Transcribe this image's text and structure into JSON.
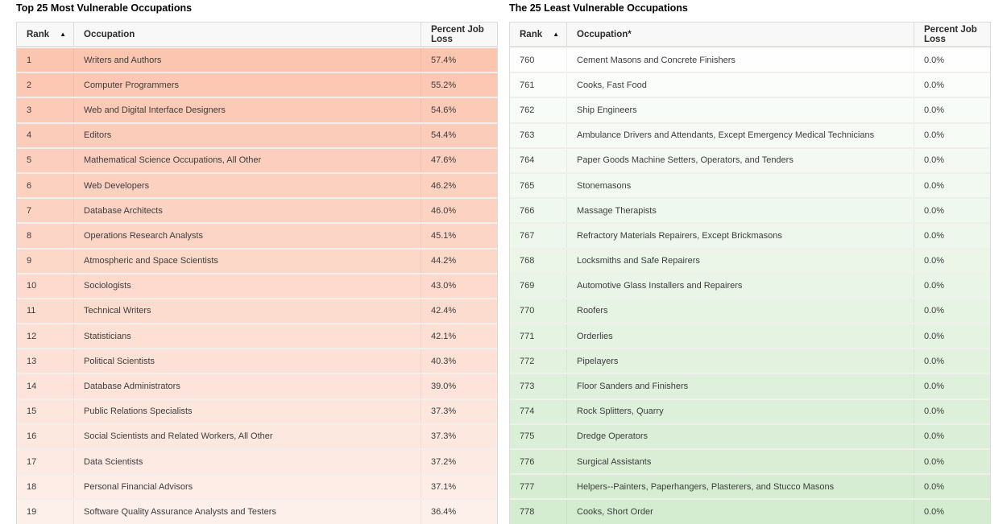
{
  "page": {
    "background": "#ffffff"
  },
  "sort_icon_glyph": "▲",
  "tables": [
    {
      "title": "Top 25 Most Vulnerable Occupations",
      "columns": {
        "rank": "Rank",
        "occupation": "Occupation",
        "percent": "Percent Job Loss"
      },
      "sort_state": "ascending-by-rank",
      "row_color_start": "#fcc5b0",
      "row_color_end": "#fdefe9",
      "rows": [
        {
          "rank": "1",
          "occupation": "Writers and Authors",
          "percent": "57.4%"
        },
        {
          "rank": "2",
          "occupation": "Computer Programmers",
          "percent": "55.2%"
        },
        {
          "rank": "3",
          "occupation": "Web and Digital Interface Designers",
          "percent": "54.6%"
        },
        {
          "rank": "4",
          "occupation": "Editors",
          "percent": "54.4%"
        },
        {
          "rank": "5",
          "occupation": "Mathematical Science Occupations, All Other",
          "percent": "47.6%"
        },
        {
          "rank": "6",
          "occupation": "Web Developers",
          "percent": "46.2%"
        },
        {
          "rank": "7",
          "occupation": "Database Architects",
          "percent": "46.0%"
        },
        {
          "rank": "8",
          "occupation": "Operations Research Analysts",
          "percent": "45.1%"
        },
        {
          "rank": "9",
          "occupation": "Atmospheric and Space Scientists",
          "percent": "44.2%"
        },
        {
          "rank": "10",
          "occupation": "Sociologists",
          "percent": "43.0%"
        },
        {
          "rank": "11",
          "occupation": "Technical Writers",
          "percent": "42.4%"
        },
        {
          "rank": "12",
          "occupation": "Statisticians",
          "percent": "42.1%"
        },
        {
          "rank": "13",
          "occupation": "Political Scientists",
          "percent": "40.3%"
        },
        {
          "rank": "14",
          "occupation": "Database Administrators",
          "percent": "39.0%"
        },
        {
          "rank": "15",
          "occupation": "Public Relations Specialists",
          "percent": "37.3%"
        },
        {
          "rank": "16",
          "occupation": "Social Scientists and Related Workers, All Other",
          "percent": "37.3%"
        },
        {
          "rank": "17",
          "occupation": "Data Scientists",
          "percent": "37.2%"
        },
        {
          "rank": "18",
          "occupation": "Personal Financial Advisors",
          "percent": "37.1%"
        },
        {
          "rank": "19",
          "occupation": "Software Quality Assurance Analysts and Testers",
          "percent": "36.4%"
        }
      ]
    },
    {
      "title": "The 25 Least Vulnerable Occupations",
      "columns": {
        "rank": "Rank",
        "occupation": "Occupation*",
        "percent": "Percent Job Loss"
      },
      "sort_state": "ascending-by-rank",
      "row_color_start": "#fdfefd",
      "row_color_end": "#d4ecd0",
      "rows": [
        {
          "rank": "760",
          "occupation": "Cement Masons and Concrete Finishers",
          "percent": "0.0%"
        },
        {
          "rank": "761",
          "occupation": "Cooks, Fast Food",
          "percent": "0.0%"
        },
        {
          "rank": "762",
          "occupation": "Ship Engineers",
          "percent": "0.0%"
        },
        {
          "rank": "763",
          "occupation": "Ambulance Drivers and Attendants, Except Emergency Medical Technicians",
          "percent": "0.0%"
        },
        {
          "rank": "764",
          "occupation": "Paper Goods Machine Setters, Operators, and Tenders",
          "percent": "0.0%"
        },
        {
          "rank": "765",
          "occupation": "Stonemasons",
          "percent": "0.0%"
        },
        {
          "rank": "766",
          "occupation": "Massage Therapists",
          "percent": "0.0%"
        },
        {
          "rank": "767",
          "occupation": "Refractory Materials Repairers, Except Brickmasons",
          "percent": "0.0%"
        },
        {
          "rank": "768",
          "occupation": "Locksmiths and Safe Repairers",
          "percent": "0.0%"
        },
        {
          "rank": "769",
          "occupation": "Automotive Glass Installers and Repairers",
          "percent": "0.0%"
        },
        {
          "rank": "770",
          "occupation": "Roofers",
          "percent": "0.0%"
        },
        {
          "rank": "771",
          "occupation": "Orderlies",
          "percent": "0.0%"
        },
        {
          "rank": "772",
          "occupation": "Pipelayers",
          "percent": "0.0%"
        },
        {
          "rank": "773",
          "occupation": "Floor Sanders and Finishers",
          "percent": "0.0%"
        },
        {
          "rank": "774",
          "occupation": "Rock Splitters, Quarry",
          "percent": "0.0%"
        },
        {
          "rank": "775",
          "occupation": "Dredge Operators",
          "percent": "0.0%"
        },
        {
          "rank": "776",
          "occupation": "Surgical Assistants",
          "percent": "0.0%"
        },
        {
          "rank": "777",
          "occupation": "Helpers--Painters, Paperhangers, Plasterers, and Stucco Masons",
          "percent": "0.0%"
        },
        {
          "rank": "778",
          "occupation": "Cooks, Short Order",
          "percent": "0.0%"
        }
      ]
    }
  ]
}
